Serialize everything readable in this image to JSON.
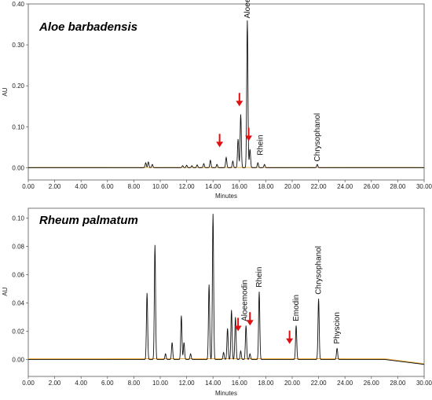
{
  "colors": {
    "trace": "#111111",
    "baseline": "#e8a020",
    "arrow": "#dd1111",
    "frame": "#555555"
  },
  "chart_data": [
    {
      "type": "line",
      "title": "Aloe barbadensis",
      "xlabel": "Minutes",
      "ylabel": "AU",
      "xlim": [
        0,
        30
      ],
      "ylim": [
        -0.03,
        0.4
      ],
      "xticks": [
        "0.00",
        "2.00",
        "4.00",
        "6.00",
        "8.00",
        "10.00",
        "12.00",
        "14.00",
        "16.00",
        "18.00",
        "20.00",
        "22.00",
        "24.00",
        "26.00",
        "28.00",
        "30.00"
      ],
      "yticks": [
        {
          "value": 0.0,
          "label": "0.00"
        },
        {
          "value": 0.1,
          "label": "0.10"
        },
        {
          "value": 0.2,
          "label": "0.20"
        },
        {
          "value": 0.3,
          "label": "0.30"
        },
        {
          "value": 0.4,
          "label": "0.40"
        }
      ],
      "grid": false,
      "peaks": [
        {
          "t": 8.9,
          "h": 0.012
        },
        {
          "t": 9.1,
          "h": 0.014
        },
        {
          "t": 9.4,
          "h": 0.008
        },
        {
          "t": 11.7,
          "h": 0.005
        },
        {
          "t": 12.0,
          "h": 0.006
        },
        {
          "t": 12.4,
          "h": 0.005
        },
        {
          "t": 12.8,
          "h": 0.007
        },
        {
          "t": 13.3,
          "h": 0.01
        },
        {
          "t": 13.8,
          "h": 0.018
        },
        {
          "t": 14.3,
          "h": 0.008
        },
        {
          "t": 15.0,
          "h": 0.025
        },
        {
          "t": 15.5,
          "h": 0.016
        },
        {
          "t": 15.9,
          "h": 0.07
        },
        {
          "t": 16.1,
          "h": 0.13
        },
        {
          "t": 16.6,
          "h": 0.36
        },
        {
          "t": 16.8,
          "h": 0.045
        },
        {
          "t": 17.4,
          "h": 0.012
        },
        {
          "t": 17.9,
          "h": 0.008
        },
        {
          "t": 21.9,
          "h": 0.008
        }
      ],
      "labels": [
        {
          "text": "Aloeemodin",
          "t": 16.6,
          "y": 0.365
        },
        {
          "text": "Rhein",
          "t": 17.6,
          "y": 0.03
        },
        {
          "text": "Chrysophanol",
          "t": 21.9,
          "y": 0.015
        }
      ],
      "arrows": [
        {
          "t": 14.5,
          "y": 0.05
        },
        {
          "t": 16.0,
          "y": 0.15
        },
        {
          "t": 16.7,
          "y": 0.065
        }
      ],
      "baseline_drift": 0.0
    },
    {
      "type": "line",
      "title": "Rheum palmatum",
      "xlabel": "Minutes",
      "ylabel": "AU",
      "xlim": [
        0,
        30
      ],
      "ylim": [
        -0.012,
        0.107
      ],
      "xticks": [
        "0.00",
        "2.00",
        "4.00",
        "6.00",
        "8.00",
        "10.00",
        "12.00",
        "14.00",
        "16.00",
        "18.00",
        "20.00",
        "22.00",
        "24.00",
        "26.00",
        "28.00",
        "30.00"
      ],
      "yticks": [
        {
          "value": 0.0,
          "label": "0.00"
        },
        {
          "value": 0.02,
          "label": "0.02"
        },
        {
          "value": 0.04,
          "label": "0.04"
        },
        {
          "value": 0.06,
          "label": "0.06"
        },
        {
          "value": 0.08,
          "label": "0.08"
        },
        {
          "value": 0.1,
          "label": "0.10"
        }
      ],
      "grid": false,
      "peaks": [
        {
          "t": 9.0,
          "h": 0.047
        },
        {
          "t": 9.6,
          "h": 0.081
        },
        {
          "t": 10.4,
          "h": 0.004
        },
        {
          "t": 10.9,
          "h": 0.012
        },
        {
          "t": 11.6,
          "h": 0.031
        },
        {
          "t": 11.8,
          "h": 0.012
        },
        {
          "t": 12.3,
          "h": 0.004
        },
        {
          "t": 13.7,
          "h": 0.053
        },
        {
          "t": 14.0,
          "h": 0.103
        },
        {
          "t": 14.8,
          "h": 0.005
        },
        {
          "t": 15.1,
          "h": 0.022
        },
        {
          "t": 15.4,
          "h": 0.035
        },
        {
          "t": 15.7,
          "h": 0.03
        },
        {
          "t": 16.1,
          "h": 0.006
        },
        {
          "t": 16.5,
          "h": 0.024
        },
        {
          "t": 16.8,
          "h": 0.004
        },
        {
          "t": 17.5,
          "h": 0.048
        },
        {
          "t": 20.3,
          "h": 0.024
        },
        {
          "t": 22.0,
          "h": 0.043
        },
        {
          "t": 23.4,
          "h": 0.008
        }
      ],
      "labels": [
        {
          "text": "Aloeemodin",
          "t": 16.4,
          "y": 0.027
        },
        {
          "text": "Rhein",
          "t": 17.5,
          "y": 0.051
        },
        {
          "text": "Emodin",
          "t": 20.3,
          "y": 0.027
        },
        {
          "text": "Chrysophanol",
          "t": 22.0,
          "y": 0.046
        },
        {
          "text": "Physcion",
          "t": 23.4,
          "y": 0.011
        }
      ],
      "arrows": [
        {
          "t": 15.9,
          "y": 0.02
        },
        {
          "t": 16.8,
          "y": 0.024
        },
        {
          "t": 19.8,
          "y": 0.011
        }
      ],
      "baseline_drift": -0.0035
    }
  ]
}
